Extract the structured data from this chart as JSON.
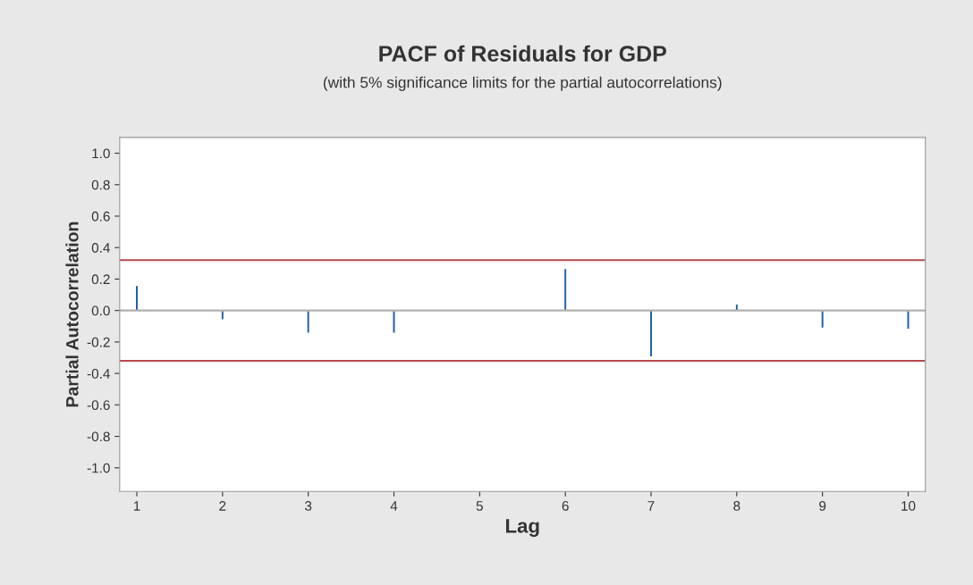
{
  "chart_data": {
    "type": "bar",
    "title": "PACF of Residuals for GDP",
    "subtitle": "(with 5% significance limits for the partial autocorrelations)",
    "xlabel": "Lag",
    "ylabel": "Partial Autocorrelation",
    "x": [
      1,
      2,
      3,
      4,
      5,
      6,
      7,
      8,
      9,
      10
    ],
    "series": [
      {
        "color": "#1f5fa8",
        "values": [
          0.16,
          -0.06,
          -0.145,
          -0.145,
          null,
          0.267,
          -0.295,
          0.042,
          -0.112,
          -0.12
        ]
      }
    ],
    "xlim": [
      0.8,
      10.2
    ],
    "xticks": [
      1,
      2,
      3,
      4,
      5,
      6,
      7,
      8,
      9,
      10
    ],
    "ylim": [
      -1.15,
      1.1
    ],
    "yticks": [
      {
        "value": -1.0,
        "label": "-1.0"
      },
      {
        "value": -0.8,
        "label": "-0.8"
      },
      {
        "value": -0.6,
        "label": "-0.6"
      },
      {
        "value": -0.4,
        "label": "-0.4"
      },
      {
        "value": -0.2,
        "label": "-0.2"
      },
      {
        "value": 0.0,
        "label": "0.0"
      },
      {
        "value": 0.2,
        "label": "0.2"
      },
      {
        "value": 0.4,
        "label": "0.4"
      },
      {
        "value": 0.6,
        "label": "0.6"
      },
      {
        "value": 0.8,
        "label": "0.8"
      },
      {
        "value": 1.0,
        "label": "1.0"
      }
    ],
    "ref_lines": [
      {
        "axis": "y",
        "value": 0.32,
        "color": "#b5484a"
      },
      {
        "axis": "y",
        "value": -0.32,
        "color": "#b5484a"
      },
      {
        "axis": "y",
        "value": 0.0,
        "color": "#b0b0b0"
      }
    ],
    "grid": false,
    "legend": false
  }
}
